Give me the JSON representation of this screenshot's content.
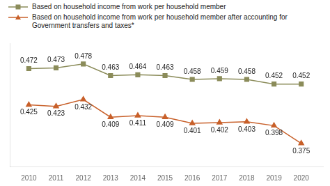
{
  "chart_data": {
    "type": "line",
    "x": [
      2010,
      2011,
      2012,
      2013,
      2014,
      2015,
      2016,
      2017,
      2018,
      2019,
      2020
    ],
    "series": [
      {
        "name": "Based on household income from work per household member",
        "color": "#8b8c5a",
        "marker": "square",
        "values": [
          0.472,
          0.473,
          0.478,
          0.463,
          0.464,
          0.463,
          0.458,
          0.459,
          0.458,
          0.452,
          0.452
        ]
      },
      {
        "name": "Based on household income from work per household member after accounting for\nGovernment transfers and taxes*",
        "color": "#c8602a",
        "marker": "triangle",
        "values": [
          0.425,
          0.423,
          0.432,
          0.409,
          0.411,
          0.409,
          0.401,
          0.402,
          0.403,
          0.398,
          0.375
        ]
      }
    ],
    "xlim": [
      2009.3,
      2020.8
    ],
    "xticks": [
      2010,
      2011,
      2012,
      2013,
      2014,
      2015,
      2016,
      2017,
      2018,
      2019,
      2020
    ],
    "ylim": [
      0.345,
      0.505
    ],
    "grid": false,
    "legend": "top",
    "data_labels": true,
    "tick_labels": "x"
  }
}
